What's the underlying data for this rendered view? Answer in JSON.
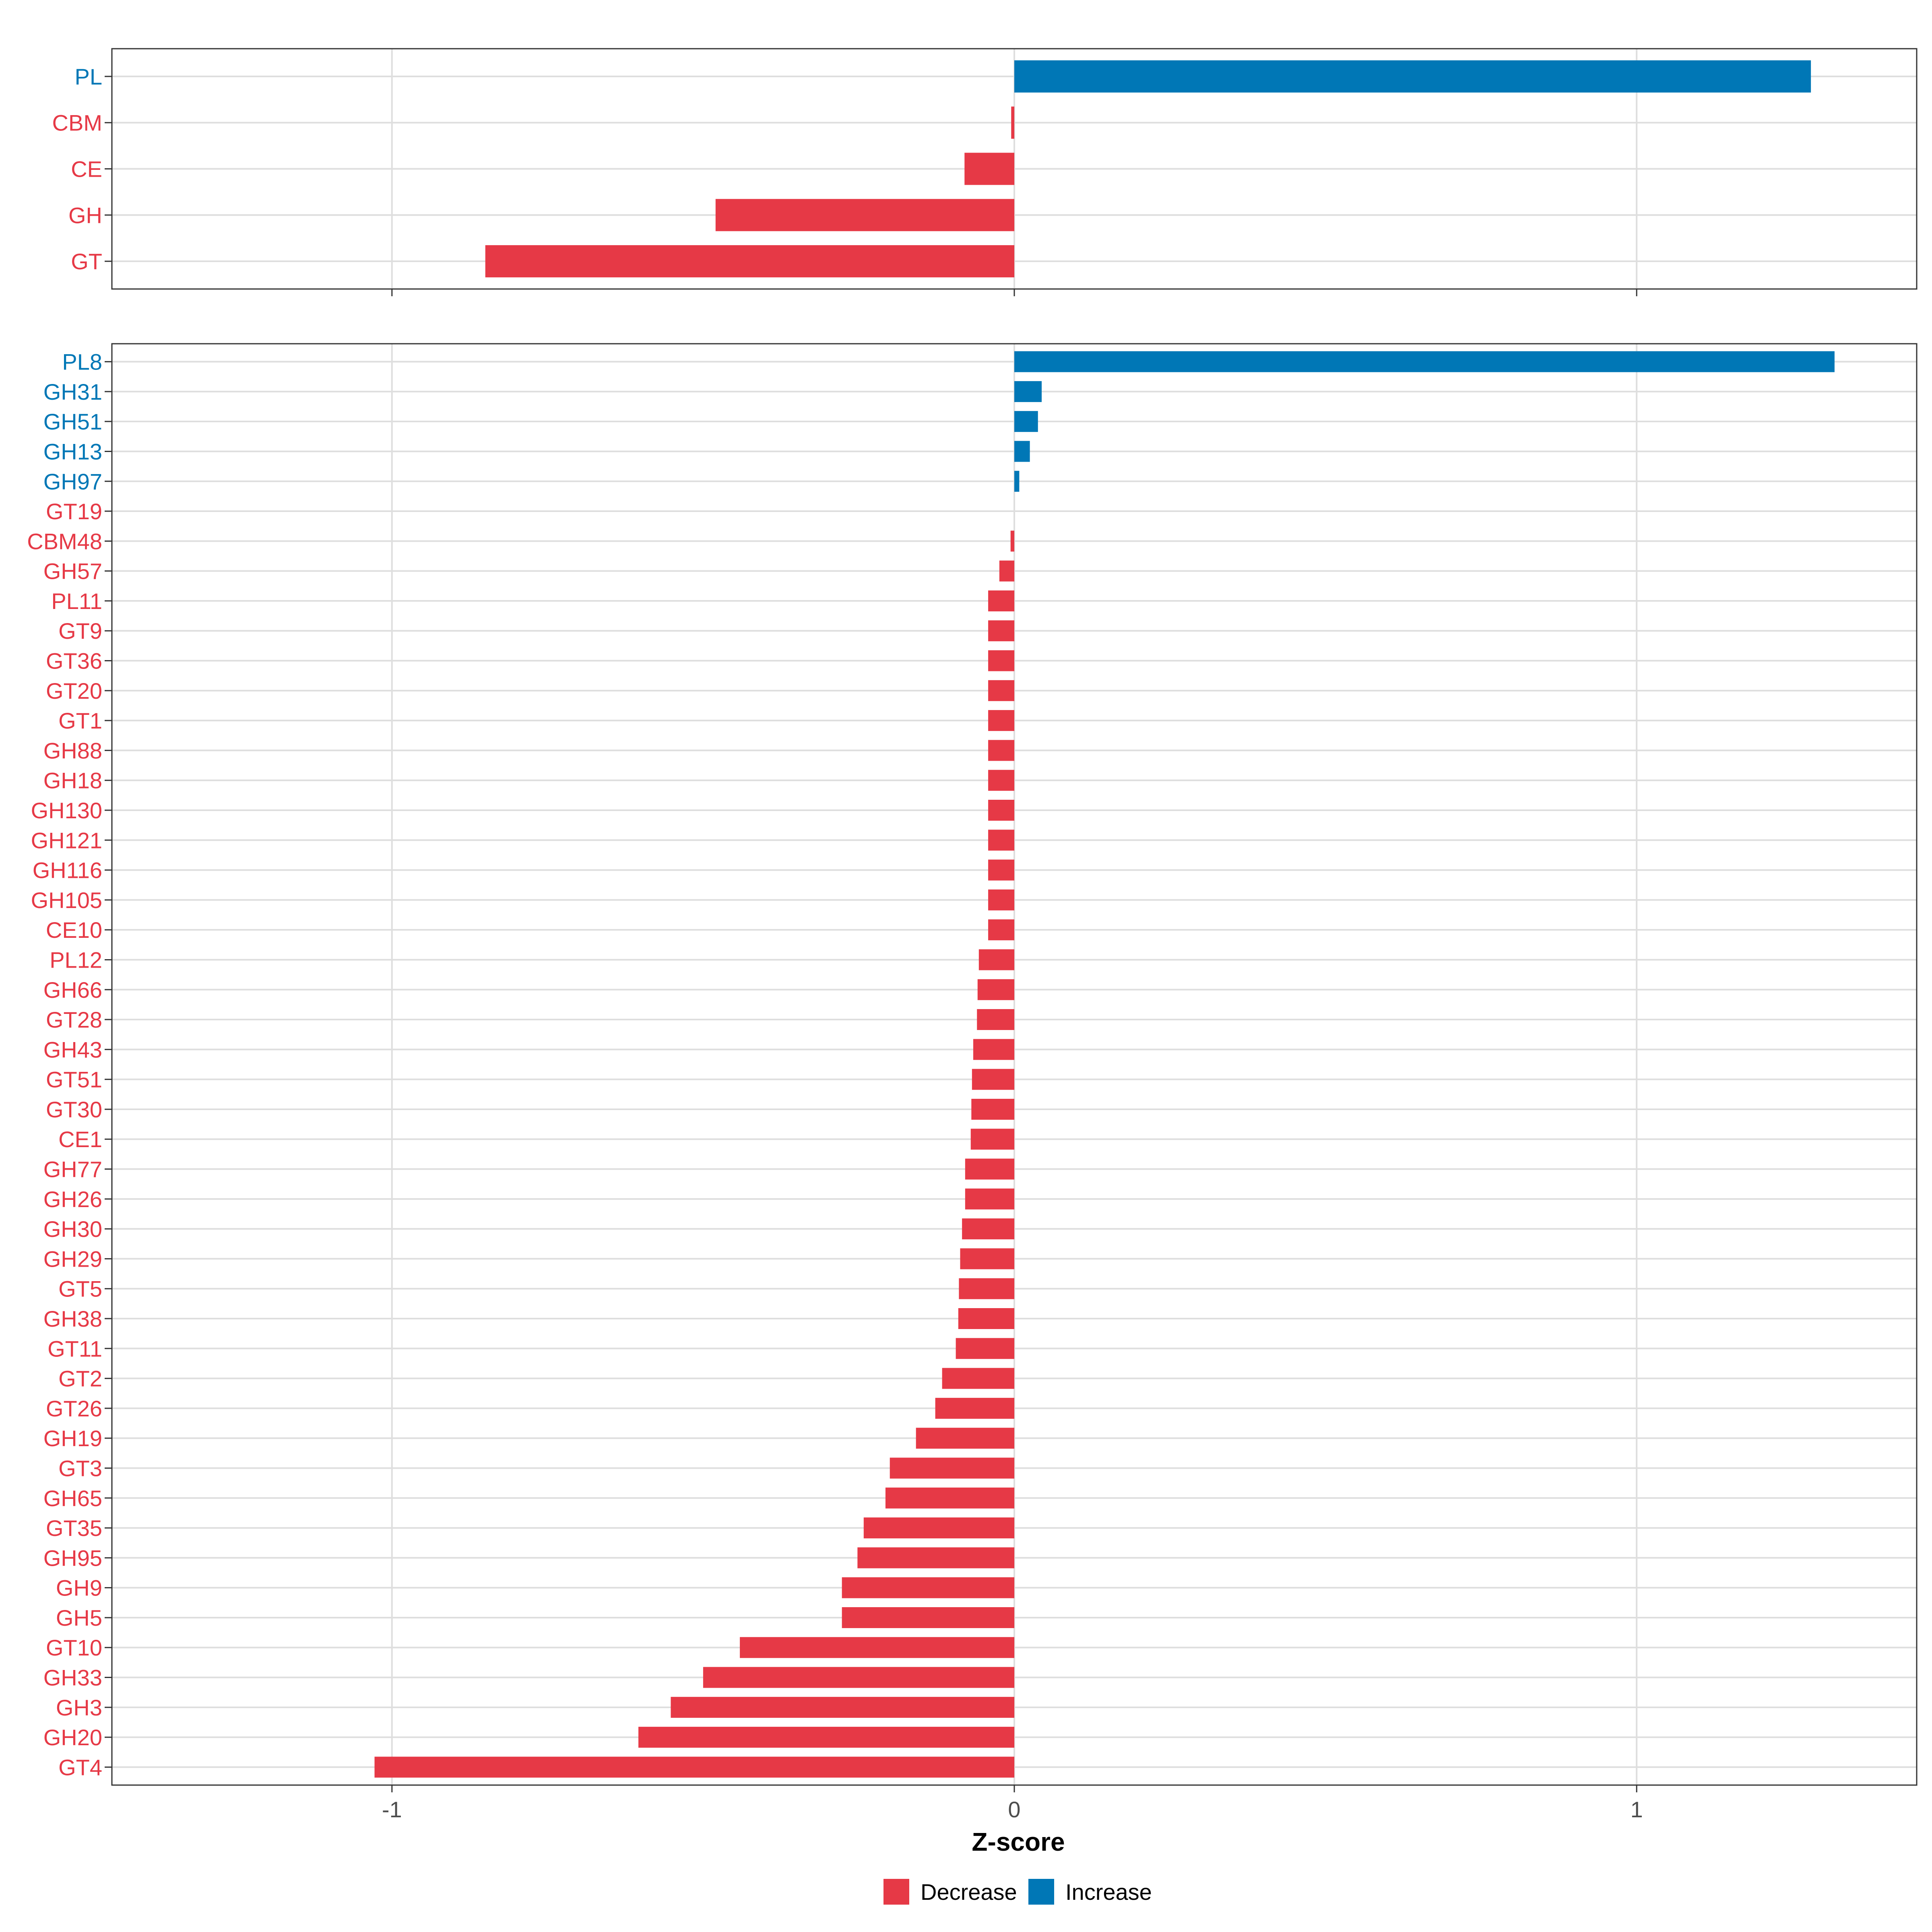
{
  "colors": {
    "decrease": "#E63946",
    "increase": "#0077B6"
  },
  "chart_data": [
    {
      "type": "bar",
      "orientation": "horizontal",
      "panel": "family",
      "categories": [
        "PL",
        "CBM",
        "CE",
        "GH",
        "GT"
      ],
      "values": [
        1.28,
        -0.005,
        -0.08,
        -0.48,
        -0.85
      ],
      "xlim": [
        -1.45,
        1.45
      ],
      "grid": true
    },
    {
      "type": "bar",
      "orientation": "horizontal",
      "panel": "subfamily",
      "categories": [
        "PL8",
        "GH31",
        "GH51",
        "GH13",
        "GH97",
        "GT19",
        "CBM48",
        "GH57",
        "PL11",
        "GT9",
        "GT36",
        "GT20",
        "GT1",
        "GH88",
        "GH18",
        "GH130",
        "GH121",
        "GH116",
        "GH105",
        "CE10",
        "PL12",
        "GH66",
        "GT28",
        "GH43",
        "GT51",
        "GT30",
        "CE1",
        "GH77",
        "GH26",
        "GH30",
        "GH29",
        "GT5",
        "GH38",
        "GT11",
        "GT2",
        "GT26",
        "GH19",
        "GT3",
        "GH65",
        "GT35",
        "GH95",
        "GH9",
        "GH5",
        "GT10",
        "GH33",
        "GH3",
        "GH20",
        "GT4"
      ],
      "values": [
        1.318,
        0.044,
        0.038,
        0.025,
        0.008,
        0,
        -0.006,
        -0.024,
        -0.042,
        -0.042,
        -0.042,
        -0.042,
        -0.042,
        -0.042,
        -0.042,
        -0.042,
        -0.042,
        -0.042,
        -0.042,
        -0.042,
        -0.057,
        -0.059,
        -0.06,
        -0.066,
        -0.068,
        -0.069,
        -0.07,
        -0.079,
        -0.079,
        -0.084,
        -0.087,
        -0.089,
        -0.09,
        -0.094,
        -0.116,
        -0.127,
        -0.158,
        -0.2,
        -0.207,
        -0.242,
        -0.252,
        -0.277,
        -0.277,
        -0.441,
        -0.5,
        -0.552,
        -0.604,
        -1.028
      ],
      "xlim": [
        -1.45,
        1.45
      ],
      "xticks": [
        -1,
        0,
        1
      ],
      "xlabel": "Z-score",
      "grid": true
    }
  ],
  "legend": {
    "position": "bottom",
    "items": [
      {
        "label": "Decrease",
        "color": "#E63946"
      },
      {
        "label": "Increase",
        "color": "#0077B6"
      }
    ]
  }
}
